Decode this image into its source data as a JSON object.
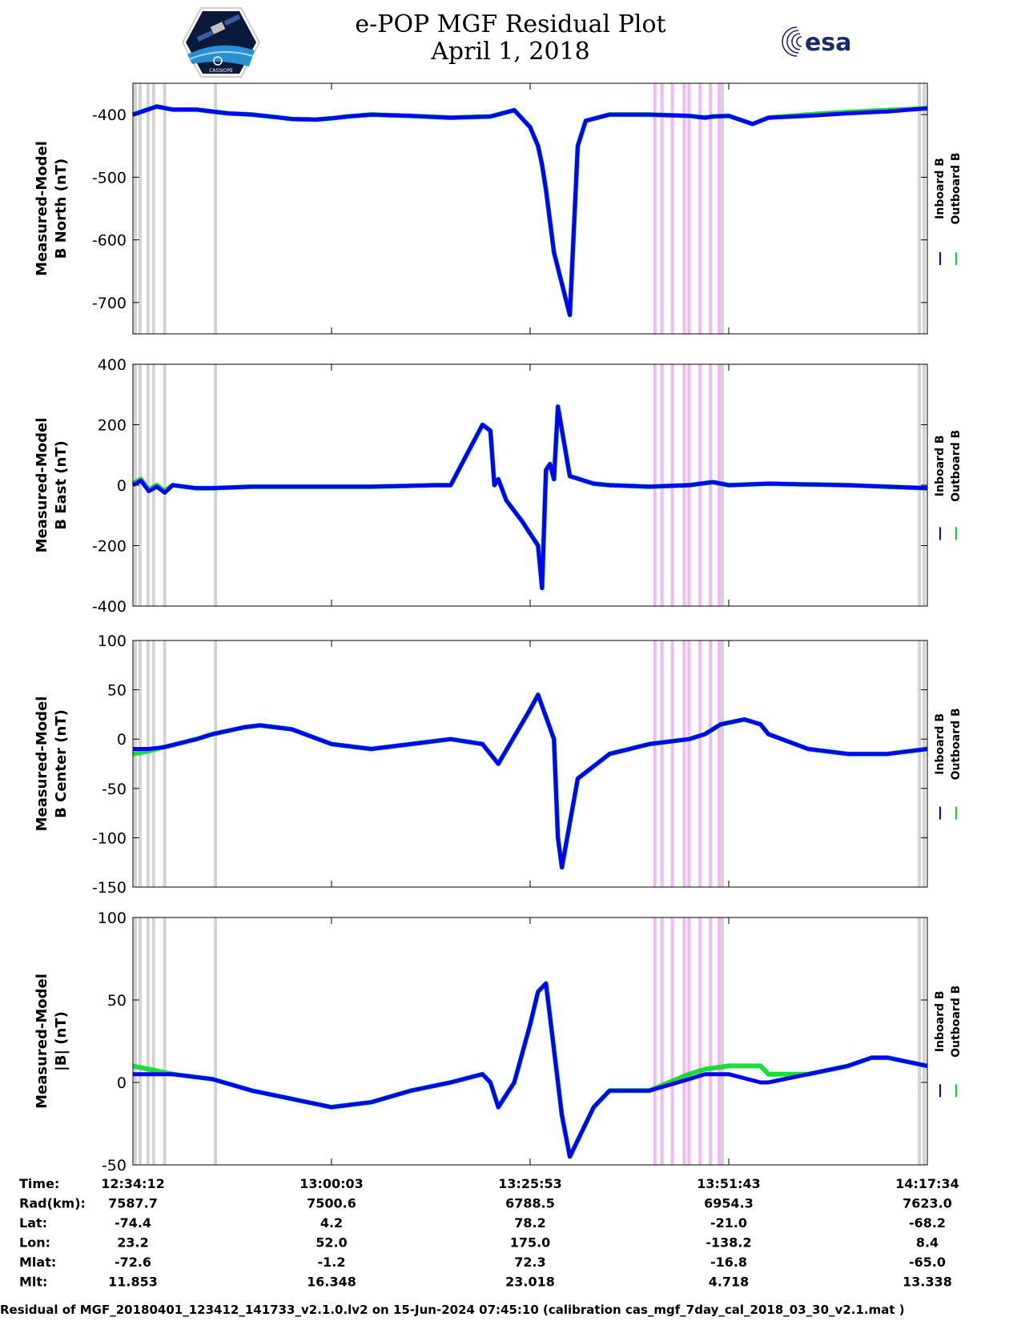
{
  "title_line1": "e-POP MGF Residual Plot",
  "title_line2": "April 1, 2018",
  "logo_left_text": "CASSIOPE",
  "logo_esa_text": "esa",
  "colors": {
    "inboard": "#0000ff",
    "outboard": "#00dd22",
    "gap_gray": "#d3d3d3",
    "gap_magenta": "#f4b8f4"
  },
  "chart_data": [
    {
      "type": "line",
      "ylabel_line1": "Measured-Model",
      "ylabel_line2": "B North (nT)",
      "ylim": [
        -750,
        -350
      ],
      "yticks": [
        "-400",
        "-500",
        "-600",
        "-700"
      ],
      "ytick_values": [
        -400,
        -500,
        -600,
        -700
      ],
      "x": [
        0,
        3,
        5,
        8,
        12,
        15,
        18,
        20,
        23,
        25,
        27,
        28,
        30,
        35,
        40,
        45,
        48,
        50,
        51,
        51.5,
        52,
        53,
        55,
        56,
        57,
        60,
        65,
        70,
        72,
        73,
        75,
        78,
        80,
        85,
        90,
        95,
        100
      ],
      "series": [
        {
          "name": "Inboard B",
          "values": [
            -400,
            -387,
            -392,
            -392,
            -398,
            -400,
            -404,
            -407,
            -408,
            -406,
            -403,
            -402,
            -400,
            -402,
            -405,
            -403,
            -393,
            -420,
            -450,
            -480,
            -520,
            -620,
            -720,
            -450,
            -410,
            -400,
            -400,
            -402,
            -405,
            -403,
            -402,
            -415,
            -405,
            -402,
            -398,
            -395,
            -390
          ]
        },
        {
          "name": "Outboard B",
          "values": [
            -400,
            -387,
            -392,
            -392,
            -398,
            -400,
            -404,
            -407,
            -408,
            -406,
            -403,
            -402,
            -400,
            -402,
            -405,
            -403,
            -393,
            -420,
            -450,
            -480,
            -520,
            -620,
            -720,
            -450,
            -410,
            -400,
            -400,
            -402,
            -405,
            -403,
            -402,
            -415,
            -405,
            -400,
            -396,
            -393,
            -390
          ]
        }
      ],
      "legend": [
        "Inboard B",
        "Outboard B"
      ]
    },
    {
      "type": "line",
      "ylabel_line1": "Measured-Model",
      "ylabel_line2": "B East (nT)",
      "ylim": [
        -400,
        400
      ],
      "yticks": [
        "400",
        "200",
        "0",
        "-200",
        "-400"
      ],
      "ytick_values": [
        400,
        200,
        0,
        -200,
        -400
      ],
      "x": [
        0,
        1,
        2,
        3,
        4,
        5,
        8,
        10,
        15,
        20,
        30,
        38,
        40,
        44,
        45,
        45.5,
        46,
        47,
        49,
        51,
        51.5,
        52,
        52.5,
        53,
        53.5,
        55,
        58,
        60,
        65,
        70,
        73,
        75,
        80,
        90,
        100
      ],
      "series": [
        {
          "name": "Inboard B",
          "values": [
            0,
            15,
            -20,
            -5,
            -25,
            0,
            -10,
            -10,
            -5,
            -5,
            -5,
            0,
            0,
            200,
            180,
            0,
            20,
            -50,
            -120,
            -200,
            -340,
            50,
            70,
            20,
            260,
            30,
            5,
            0,
            -5,
            0,
            10,
            0,
            5,
            0,
            -10
          ]
        },
        {
          "name": "Outboard B",
          "values": [
            5,
            20,
            -15,
            0,
            -20,
            0,
            -10,
            -10,
            -5,
            -5,
            -5,
            0,
            0,
            200,
            180,
            0,
            20,
            -50,
            -120,
            -200,
            -340,
            50,
            70,
            20,
            260,
            30,
            5,
            0,
            -5,
            0,
            10,
            0,
            5,
            0,
            -10
          ]
        }
      ],
      "legend": [
        "Inboard B",
        "Outboard B"
      ]
    },
    {
      "type": "line",
      "ylabel_line1": "Measured-Model",
      "ylabel_line2": "B Center (nT)",
      "ylim": [
        -150,
        100
      ],
      "yticks": [
        "100",
        "50",
        "0",
        "-50",
        "-100",
        "-150"
      ],
      "ytick_values": [
        100,
        50,
        0,
        -50,
        -100,
        -150
      ],
      "x": [
        0,
        2,
        4,
        8,
        10,
        14,
        16,
        20,
        25,
        30,
        35,
        40,
        44,
        46,
        50,
        51,
        53,
        53.5,
        54,
        56,
        60,
        65,
        70,
        72,
        74,
        77,
        79,
        80,
        85,
        90,
        95,
        100
      ],
      "series": [
        {
          "name": "Inboard B",
          "values": [
            -10,
            -10,
            -8,
            0,
            5,
            12,
            14,
            10,
            -5,
            -10,
            -5,
            0,
            -5,
            -25,
            30,
            45,
            0,
            -100,
            -130,
            -40,
            -15,
            -5,
            0,
            5,
            15,
            20,
            15,
            5,
            -10,
            -15,
            -15,
            -10
          ]
        },
        {
          "name": "Outboard B",
          "values": [
            -15,
            -12,
            -8,
            0,
            5,
            12,
            14,
            10,
            -5,
            -10,
            -5,
            0,
            -5,
            -25,
            30,
            45,
            0,
            -100,
            -130,
            -40,
            -15,
            -5,
            0,
            5,
            15,
            20,
            15,
            5,
            -10,
            -15,
            -15,
            -10
          ]
        }
      ],
      "legend": [
        "Inboard B",
        "Outboard B"
      ]
    },
    {
      "type": "line",
      "ylabel_line1": "Measured-Model",
      "ylabel_line2": "|B| (nT)",
      "ylim": [
        -50,
        100
      ],
      "yticks": [
        "100",
        "50",
        "0",
        "-50"
      ],
      "ytick_values": [
        100,
        50,
        0,
        -50
      ],
      "x": [
        0,
        5,
        10,
        15,
        20,
        25,
        30,
        35,
        40,
        44,
        45,
        46,
        48,
        50,
        51,
        52,
        53,
        54,
        55,
        58,
        60,
        65,
        70,
        72,
        75,
        79,
        80,
        85,
        90,
        93,
        95,
        100
      ],
      "series": [
        {
          "name": "Inboard B",
          "values": [
            5,
            5,
            2,
            -5,
            -10,
            -15,
            -12,
            -5,
            0,
            5,
            0,
            -15,
            0,
            35,
            55,
            60,
            20,
            -20,
            -45,
            -15,
            -5,
            -5,
            2,
            5,
            5,
            0,
            0,
            5,
            10,
            15,
            15,
            10
          ]
        },
        {
          "name": "Outboard B",
          "values": [
            10,
            5,
            2,
            -5,
            -10,
            -15,
            -12,
            -5,
            0,
            5,
            0,
            -15,
            0,
            35,
            55,
            60,
            20,
            -20,
            -45,
            -15,
            -5,
            -5,
            5,
            8,
            10,
            10,
            5,
            5,
            10,
            15,
            15,
            10
          ]
        }
      ],
      "legend": [
        "Inboard B",
        "Outboard B"
      ]
    }
  ],
  "gap_lines_gray": [
    0.3,
    0.9,
    1.9,
    2.6,
    4.0,
    10.4,
    74.2,
    99.0,
    99.6
  ],
  "gap_lines_magenta": [
    65.7,
    66.6,
    67.9,
    69.4,
    70.0,
    71.4,
    72.7,
    73.8
  ],
  "xtick_positions": [
    0,
    25,
    50,
    75,
    100
  ],
  "info_rows": [
    {
      "label": "Time:",
      "values": [
        "12:34:12",
        "13:00:03",
        "13:25:53",
        "13:51:43",
        "14:17:34"
      ]
    },
    {
      "label": "Rad(km):",
      "values": [
        "7587.7",
        "7500.6",
        "6788.5",
        "6954.3",
        "7623.0"
      ]
    },
    {
      "label": "Lat:",
      "values": [
        "-74.4",
        "4.2",
        "78.2",
        "-21.0",
        "-68.2"
      ]
    },
    {
      "label": "Lon:",
      "values": [
        "23.2",
        "52.0",
        "175.0",
        "-138.2",
        "8.4"
      ]
    },
    {
      "label": "Mlat:",
      "values": [
        "-72.6",
        "-1.2",
        "72.3",
        "-16.8",
        "-65.0"
      ]
    },
    {
      "label": "Mlt:",
      "values": [
        "11.853",
        "16.348",
        "23.018",
        "4.718",
        "13.338"
      ]
    }
  ],
  "footer": "Residual of MGF_20180401_123412_141733_v2.1.0.lv2 on 15-Jun-2024 07:45:10 (calibration cas_mgf_7day_cal_2018_03_30_v2.1.mat )"
}
